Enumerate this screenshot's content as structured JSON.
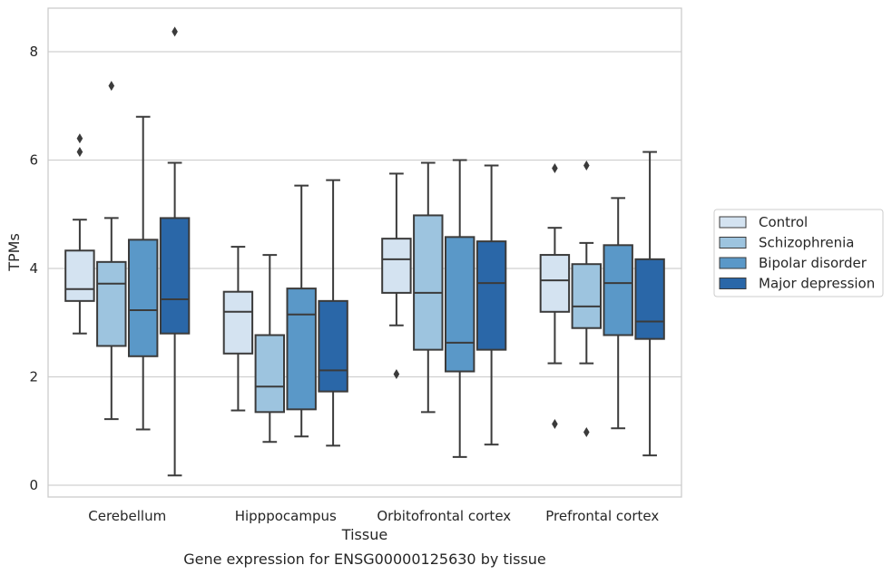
{
  "chart_data": {
    "type": "box",
    "title": "",
    "caption": "Gene expression for ENSG00000125630 by tissue",
    "xlabel": "Tissue",
    "ylabel": "TPMs",
    "ylim": [
      -0.2,
      8.8
    ],
    "yticks": [
      "0",
      "2",
      "4",
      "6",
      "8"
    ],
    "ytick_values": [
      0,
      2,
      4,
      6,
      8
    ],
    "grid": "horizontal",
    "legend_position": "right",
    "categories": [
      "Cerebellum",
      "Hipppocampus",
      "Orbitofrontal cortex",
      "Prefrontal cortex"
    ],
    "series": [
      {
        "name": "Control",
        "color": "#d4e3f1",
        "boxes": [
          {
            "whislo": 2.8,
            "q1": 3.4,
            "med": 3.62,
            "q3": 4.33,
            "whishi": 4.9,
            "fliers": [
              6.15,
              6.4
            ]
          },
          {
            "whislo": 1.38,
            "q1": 2.43,
            "med": 3.2,
            "q3": 3.57,
            "whishi": 4.4,
            "fliers": []
          },
          {
            "whislo": 2.95,
            "q1": 3.55,
            "med": 4.17,
            "q3": 4.55,
            "whishi": 5.75,
            "fliers": [
              2.05
            ]
          },
          {
            "whislo": 2.25,
            "q1": 3.2,
            "med": 3.78,
            "q3": 4.25,
            "whishi": 4.75,
            "fliers": [
              5.85,
              1.13
            ]
          }
        ]
      },
      {
        "name": "Schizophrenia",
        "color": "#9dc4df",
        "boxes": [
          {
            "whislo": 1.22,
            "q1": 2.57,
            "med": 3.72,
            "q3": 4.12,
            "whishi": 4.93,
            "fliers": [
              7.37
            ]
          },
          {
            "whislo": 0.8,
            "q1": 1.35,
            "med": 1.82,
            "q3": 2.77,
            "whishi": 4.25,
            "fliers": []
          },
          {
            "whislo": 1.35,
            "q1": 2.5,
            "med": 3.55,
            "q3": 4.98,
            "whishi": 5.95,
            "fliers": []
          },
          {
            "whislo": 2.25,
            "q1": 2.9,
            "med": 3.3,
            "q3": 4.08,
            "whishi": 4.47,
            "fliers": [
              5.9,
              0.98
            ]
          }
        ]
      },
      {
        "name": "Bipolar disorder",
        "color": "#5a98c8",
        "boxes": [
          {
            "whislo": 1.03,
            "q1": 2.38,
            "med": 3.23,
            "q3": 4.53,
            "whishi": 6.8,
            "fliers": []
          },
          {
            "whislo": 0.9,
            "q1": 1.4,
            "med": 3.15,
            "q3": 3.63,
            "whishi": 5.53,
            "fliers": []
          },
          {
            "whislo": 0.52,
            "q1": 2.1,
            "med": 2.63,
            "q3": 4.58,
            "whishi": 6.0,
            "fliers": []
          },
          {
            "whislo": 1.05,
            "q1": 2.77,
            "med": 3.73,
            "q3": 4.43,
            "whishi": 5.3,
            "fliers": []
          }
        ]
      },
      {
        "name": "Major depression",
        "color": "#2a67a8",
        "boxes": [
          {
            "whislo": 0.18,
            "q1": 2.8,
            "med": 3.43,
            "q3": 4.93,
            "whishi": 5.95,
            "fliers": [
              8.37
            ]
          },
          {
            "whislo": 0.73,
            "q1": 1.73,
            "med": 2.12,
            "q3": 3.4,
            "whishi": 5.63,
            "fliers": []
          },
          {
            "whislo": 0.75,
            "q1": 2.5,
            "med": 3.73,
            "q3": 4.5,
            "whishi": 5.9,
            "fliers": []
          },
          {
            "whislo": 0.55,
            "q1": 2.7,
            "med": 3.02,
            "q3": 4.17,
            "whishi": 6.15,
            "fliers": []
          }
        ]
      }
    ]
  }
}
